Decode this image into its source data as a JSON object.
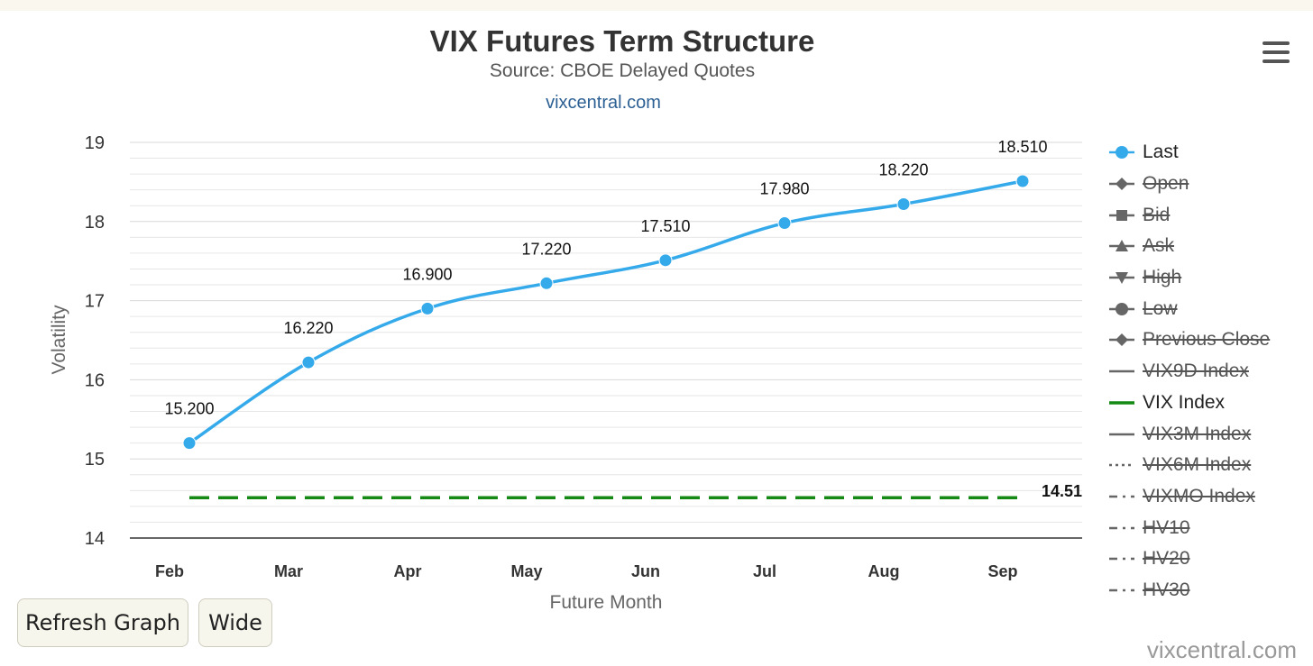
{
  "chart_data": {
    "type": "line",
    "title": "VIX Futures Term Structure",
    "subtitle": "Source: CBOE Delayed Quotes",
    "link_text": "vixcentral.com",
    "xlabel": "Future Month",
    "ylabel": "Volatility",
    "categories": [
      "Feb",
      "Mar",
      "Apr",
      "May",
      "Jun",
      "Jul",
      "Aug",
      "Sep"
    ],
    "ylim": [
      14,
      19
    ],
    "yticks": [
      "14",
      "15",
      "16",
      "17",
      "18",
      "19"
    ],
    "grid": true,
    "series": [
      {
        "name": "Last",
        "values": [
          15.2,
          16.22,
          16.9,
          17.22,
          17.51,
          17.98,
          18.22,
          18.51
        ],
        "labels": [
          "15.200",
          "16.220",
          "16.900",
          "17.220",
          "17.510",
          "17.980",
          "18.220",
          "18.510"
        ],
        "color": "#35aaeb",
        "smooth": true
      },
      {
        "name": "VIX Index",
        "value": 14.51,
        "label": "14.51",
        "color": "#148a14",
        "style": "dashed"
      }
    ],
    "legend": {
      "position": "right",
      "items": [
        {
          "label": "Last",
          "symbol": "circle-line",
          "color": "#35aaeb",
          "hidden": false
        },
        {
          "label": "Open",
          "symbol": "diamond-line",
          "color": "#666666",
          "hidden": true
        },
        {
          "label": "Bid",
          "symbol": "square-line",
          "color": "#666666",
          "hidden": true
        },
        {
          "label": "Ask",
          "symbol": "triangle-line",
          "color": "#666666",
          "hidden": true
        },
        {
          "label": "High",
          "symbol": "triangle-down-line",
          "color": "#666666",
          "hidden": true
        },
        {
          "label": "Low",
          "symbol": "circle-line",
          "color": "#666666",
          "hidden": true
        },
        {
          "label": "Previous Close",
          "symbol": "diamond-line",
          "color": "#666666",
          "hidden": true
        },
        {
          "label": "VIX9D Index",
          "symbol": "solid-line",
          "color": "#666666",
          "hidden": true
        },
        {
          "label": "VIX Index",
          "symbol": "solid-line",
          "color": "#148a14",
          "hidden": false
        },
        {
          "label": "VIX3M Index",
          "symbol": "solid-line",
          "color": "#666666",
          "hidden": true
        },
        {
          "label": "VIX6M Index",
          "symbol": "dotted-line",
          "color": "#666666",
          "hidden": true
        },
        {
          "label": "VIXMO Index",
          "symbol": "dashdot-line",
          "color": "#666666",
          "hidden": true
        },
        {
          "label": "HV10",
          "symbol": "dashdot-line",
          "color": "#666666",
          "hidden": true
        },
        {
          "label": "HV20",
          "symbol": "dashdot-line",
          "color": "#666666",
          "hidden": true
        },
        {
          "label": "HV30",
          "symbol": "dashdot-line",
          "color": "#666666",
          "hidden": true
        }
      ]
    }
  },
  "buttons": {
    "refresh": "Refresh Graph",
    "wide": "Wide"
  },
  "credits": "vixcentral.com",
  "menu_icon": "hamburger-menu-icon"
}
